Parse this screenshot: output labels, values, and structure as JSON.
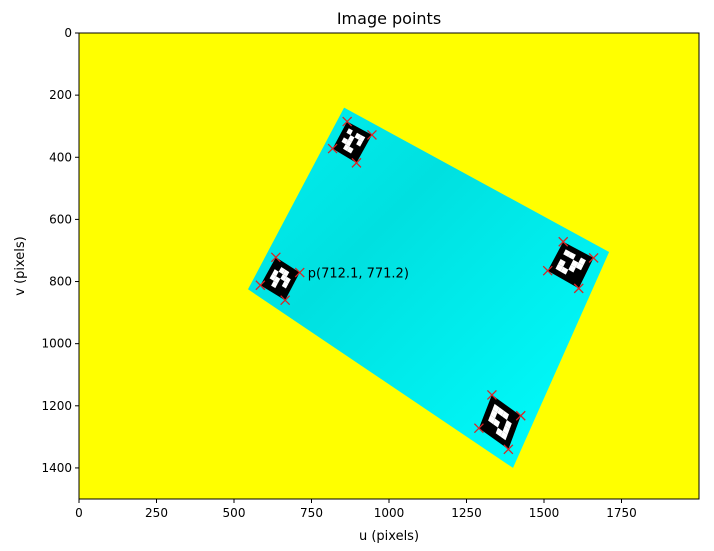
{
  "chart_data": {
    "type": "scatter",
    "title": "Image points",
    "xlabel": "u (pixels)",
    "ylabel": "v (pixels)",
    "xlim": [
      0,
      2000
    ],
    "ylim": [
      1500,
      0
    ],
    "x_ticks": [
      0,
      250,
      500,
      750,
      1000,
      1250,
      1500,
      1750
    ],
    "y_ticks": [
      0,
      200,
      400,
      600,
      800,
      1000,
      1200,
      1400
    ],
    "grid": false,
    "background_color": "#ffff00",
    "board_color": "#00f0f0",
    "marker_color": "#d62728",
    "marker": "x",
    "board_polygon": [
      {
        "u": 855,
        "v": 240
      },
      {
        "u": 1710,
        "v": 705
      },
      {
        "u": 1400,
        "v": 1400
      },
      {
        "u": 545,
        "v": 825
      }
    ],
    "markers": [
      {
        "name": "marker-top",
        "corners": [
          {
            "u": 865,
            "v": 285
          },
          {
            "u": 945,
            "v": 328
          },
          {
            "u": 895,
            "v": 418
          },
          {
            "u": 818,
            "v": 372
          }
        ]
      },
      {
        "name": "marker-left",
        "corners": [
          {
            "u": 635,
            "v": 722
          },
          {
            "u": 712,
            "v": 771
          },
          {
            "u": 665,
            "v": 860
          },
          {
            "u": 585,
            "v": 812
          }
        ]
      },
      {
        "name": "marker-right",
        "corners": [
          {
            "u": 1562,
            "v": 672
          },
          {
            "u": 1660,
            "v": 724
          },
          {
            "u": 1612,
            "v": 822
          },
          {
            "u": 1512,
            "v": 765
          }
        ]
      },
      {
        "name": "marker-bottom",
        "corners": [
          {
            "u": 1332,
            "v": 1165
          },
          {
            "u": 1425,
            "v": 1232
          },
          {
            "u": 1385,
            "v": 1340
          },
          {
            "u": 1290,
            "v": 1272
          }
        ]
      }
    ],
    "annotations": [
      {
        "text": "p(712.1, 771.2)",
        "u": 712.1,
        "v": 771.2
      }
    ]
  }
}
